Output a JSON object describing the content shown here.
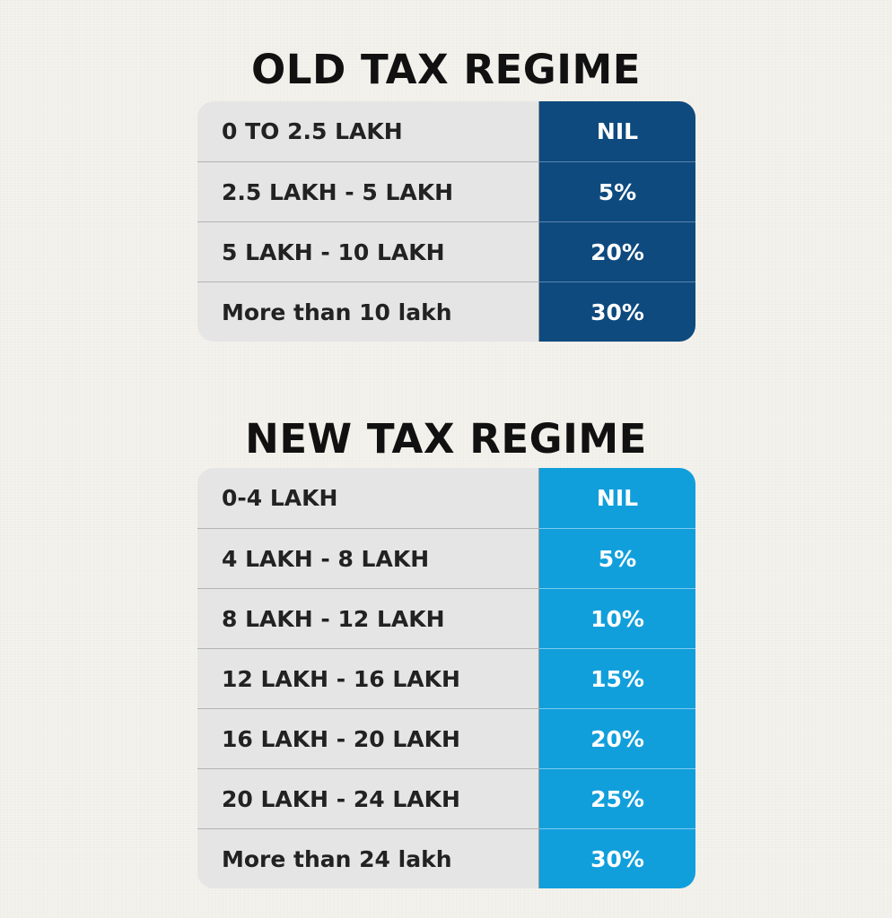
{
  "old_regime": {
    "title": "OLD TAX REGIME",
    "rate_color": "#0e4a7e",
    "rows": [
      {
        "slab": "0 TO 2.5 LAKH",
        "rate": "NIL"
      },
      {
        "slab": "2.5 LAKH - 5 LAKH",
        "rate": "5%"
      },
      {
        "slab": "5 LAKH - 10 LAKH",
        "rate": "20%"
      },
      {
        "slab": "More than 10 lakh",
        "rate": "30%"
      }
    ]
  },
  "new_regime": {
    "title": "NEW TAX REGIME",
    "rate_color": "#119fdc",
    "rows": [
      {
        "slab": "0-4 LAKH",
        "rate": "NIL"
      },
      {
        "slab": "4 LAKH - 8 LAKH",
        "rate": "5%"
      },
      {
        "slab": "8 LAKH - 12 LAKH",
        "rate": "10%"
      },
      {
        "slab": "12 LAKH - 16 LAKH",
        "rate": "15%"
      },
      {
        "slab": "16 LAKH - 20 LAKH",
        "rate": "20%"
      },
      {
        "slab": "20 LAKH - 24 LAKH",
        "rate": "25%"
      },
      {
        "slab": "More than 24 lakh",
        "rate": "30%"
      }
    ]
  }
}
